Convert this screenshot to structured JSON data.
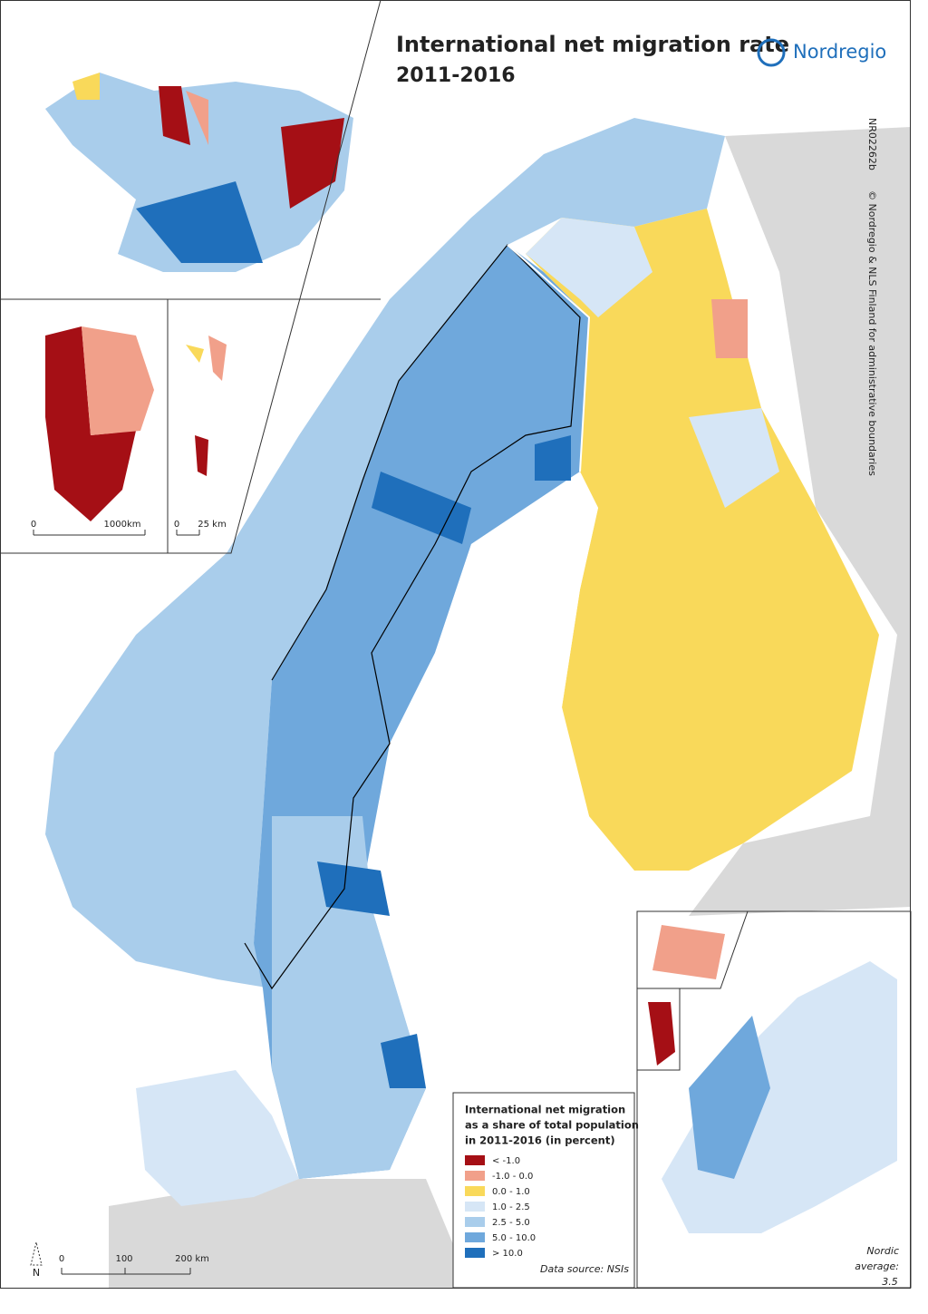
{
  "header": {
    "title": "International net migration rate",
    "period": "2011-2016",
    "logo": "Nordregio",
    "map_id": "NR02262b",
    "copyright": "© Nordregio & NLS Finland for administrative boundaries"
  },
  "insets": {
    "greenland_scale": [
      "0",
      "1000km"
    ],
    "faroe_scale": [
      "0",
      "25 km"
    ]
  },
  "scale": [
    "0",
    "100",
    "200 km"
  ],
  "north": "N",
  "legend": {
    "title": [
      "International net migration",
      "as a share of total population",
      "in 2011-2016 (in percent)"
    ],
    "items": [
      {
        "label": "< -1.0",
        "color": "#a50f15"
      },
      {
        "label": "-1.0 - 0.0",
        "color": "#f1a08a"
      },
      {
        "label": "0.0 - 1.0",
        "color": "#f9d95a"
      },
      {
        "label": "1.0 - 2.5",
        "color": "#d6e6f6"
      },
      {
        "label": "2.5 - 5.0",
        "color": "#a9cdeb"
      },
      {
        "label": "5.0 - 10.0",
        "color": "#6fa8dc"
      },
      {
        "label": "> 10.0",
        "color": "#1f6fbb"
      }
    ],
    "source": "Data source: NSIs"
  },
  "average": [
    "Nordic",
    "average:",
    "3.5"
  ]
}
